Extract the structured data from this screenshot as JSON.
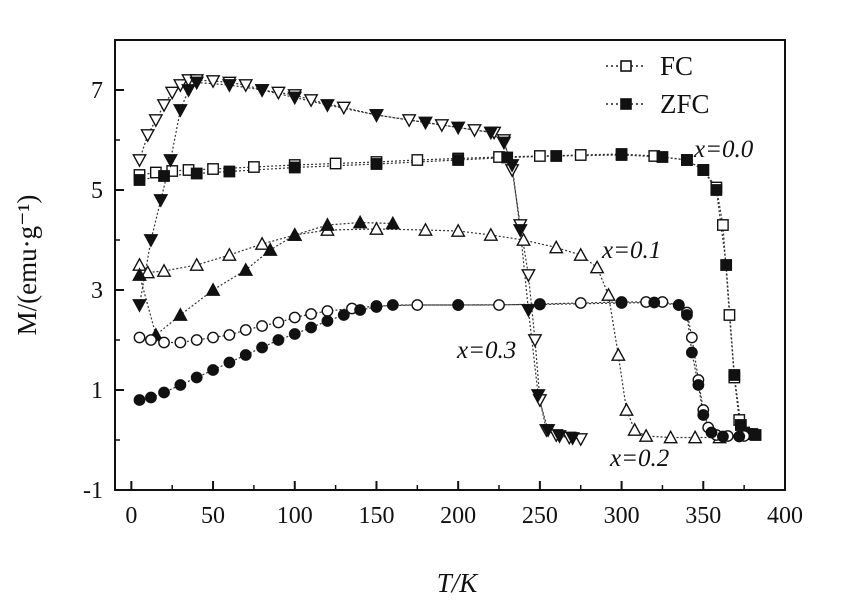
{
  "chart_data": {
    "type": "scatter",
    "title": "",
    "xlabel": "T/K",
    "ylabel": "M/(emu·g⁻¹)",
    "xlim": [
      -10,
      400
    ],
    "ylim": [
      -1,
      8
    ],
    "xticks": [
      0,
      50,
      100,
      150,
      200,
      250,
      300,
      350,
      400
    ],
    "yticks": [
      -1,
      1,
      3,
      5,
      7
    ],
    "legend": [
      {
        "label": "FC",
        "marker": "open-square",
        "line": "dotted"
      },
      {
        "label": "ZFC",
        "marker": "filled-square",
        "line": "dotted"
      }
    ],
    "annotations": [
      "x=0.0",
      "x=0.1",
      "x=0.3",
      "x=0.2"
    ],
    "series": [
      {
        "name": "x=0.0 FC",
        "marker": "open-square",
        "points": [
          [
            5,
            5.3
          ],
          [
            15,
            5.35
          ],
          [
            25,
            5.38
          ],
          [
            35,
            5.4
          ],
          [
            50,
            5.42
          ],
          [
            75,
            5.46
          ],
          [
            100,
            5.5
          ],
          [
            125,
            5.53
          ],
          [
            150,
            5.56
          ],
          [
            175,
            5.6
          ],
          [
            200,
            5.63
          ],
          [
            225,
            5.66
          ],
          [
            250,
            5.68
          ],
          [
            275,
            5.7
          ],
          [
            300,
            5.72
          ],
          [
            320,
            5.68
          ],
          [
            340,
            5.6
          ],
          [
            350,
            5.4
          ],
          [
            358,
            5.05
          ],
          [
            362,
            4.3
          ],
          [
            366,
            2.5
          ],
          [
            369,
            1.25
          ],
          [
            372,
            0.4
          ],
          [
            375,
            0.15
          ],
          [
            380,
            0.12
          ]
        ]
      },
      {
        "name": "x=0.0 ZFC",
        "marker": "filled-square",
        "points": [
          [
            5,
            5.2
          ],
          [
            20,
            5.28
          ],
          [
            40,
            5.33
          ],
          [
            60,
            5.37
          ],
          [
            100,
            5.45
          ],
          [
            150,
            5.52
          ],
          [
            200,
            5.6
          ],
          [
            230,
            5.65
          ],
          [
            260,
            5.68
          ],
          [
            300,
            5.7
          ],
          [
            325,
            5.66
          ],
          [
            340,
            5.6
          ],
          [
            350,
            5.4
          ],
          [
            358,
            5.0
          ],
          [
            364,
            3.5
          ],
          [
            369,
            1.3
          ],
          [
            373,
            0.3
          ],
          [
            377,
            0.12
          ],
          [
            382,
            0.1
          ]
        ]
      },
      {
        "name": "x=0.1 FC",
        "marker": "open-triangle-up",
        "points": [
          [
            5,
            3.5
          ],
          [
            10,
            3.35
          ],
          [
            20,
            3.38
          ],
          [
            40,
            3.5
          ],
          [
            60,
            3.7
          ],
          [
            80,
            3.92
          ],
          [
            100,
            4.1
          ],
          [
            120,
            4.2
          ],
          [
            150,
            4.22
          ],
          [
            180,
            4.2
          ],
          [
            200,
            4.18
          ],
          [
            220,
            4.1
          ],
          [
            240,
            4.0
          ],
          [
            260,
            3.85
          ],
          [
            275,
            3.7
          ],
          [
            285,
            3.45
          ],
          [
            292,
            2.9
          ],
          [
            298,
            1.7
          ],
          [
            303,
            0.6
          ],
          [
            308,
            0.2
          ],
          [
            315,
            0.08
          ],
          [
            330,
            0.05
          ],
          [
            345,
            0.05
          ],
          [
            360,
            0.05
          ]
        ]
      },
      {
        "name": "x=0.1 ZFC",
        "marker": "filled-triangle-up",
        "points": [
          [
            5,
            3.3
          ],
          [
            15,
            2.1
          ],
          [
            30,
            2.5
          ],
          [
            50,
            3.0
          ],
          [
            70,
            3.4
          ],
          [
            85,
            3.8
          ],
          [
            100,
            4.1
          ],
          [
            120,
            4.3
          ],
          [
            140,
            4.35
          ],
          [
            160,
            4.33
          ]
        ]
      },
      {
        "name": "x=0.3 FC",
        "marker": "open-triangle-down",
        "points": [
          [
            5,
            5.6
          ],
          [
            10,
            6.1
          ],
          [
            15,
            6.4
          ],
          [
            20,
            6.7
          ],
          [
            25,
            6.95
          ],
          [
            30,
            7.1
          ],
          [
            35,
            7.2
          ],
          [
            40,
            7.2
          ],
          [
            50,
            7.18
          ],
          [
            60,
            7.15
          ],
          [
            70,
            7.1
          ],
          [
            80,
            7.0
          ],
          [
            90,
            6.95
          ],
          [
            100,
            6.9
          ],
          [
            110,
            6.8
          ],
          [
            130,
            6.65
          ],
          [
            150,
            6.5
          ],
          [
            170,
            6.4
          ],
          [
            190,
            6.3
          ],
          [
            210,
            6.2
          ],
          [
            222,
            6.15
          ],
          [
            228,
            6.0
          ],
          [
            233,
            5.4
          ],
          [
            238,
            4.3
          ],
          [
            243,
            3.3
          ],
          [
            247,
            2.0
          ],
          [
            250,
            0.8
          ],
          [
            254,
            0.2
          ],
          [
            260,
            0.1
          ],
          [
            268,
            0.05
          ],
          [
            275,
            0.02
          ]
        ]
      },
      {
        "name": "x=0.3 ZFC",
        "marker": "filled-triangle-down",
        "points": [
          [
            5,
            2.7
          ],
          [
            12,
            4.0
          ],
          [
            18,
            4.8
          ],
          [
            24,
            5.6
          ],
          [
            30,
            6.6
          ],
          [
            35,
            7.0
          ],
          [
            40,
            7.15
          ],
          [
            60,
            7.1
          ],
          [
            80,
            7.0
          ],
          [
            100,
            6.85
          ],
          [
            120,
            6.7
          ],
          [
            150,
            6.5
          ],
          [
            180,
            6.35
          ],
          [
            200,
            6.25
          ],
          [
            220,
            6.15
          ],
          [
            228,
            5.95
          ],
          [
            233,
            5.5
          ],
          [
            238,
            4.2
          ],
          [
            243,
            2.6
          ],
          [
            249,
            0.9
          ],
          [
            255,
            0.2
          ],
          [
            262,
            0.08
          ],
          [
            270,
            0.04
          ]
        ]
      },
      {
        "name": "x=0.2 FC",
        "marker": "open-circle",
        "points": [
          [
            5,
            2.05
          ],
          [
            12,
            2.0
          ],
          [
            20,
            1.95
          ],
          [
            30,
            1.95
          ],
          [
            40,
            2.0
          ],
          [
            50,
            2.05
          ],
          [
            60,
            2.1
          ],
          [
            70,
            2.2
          ],
          [
            80,
            2.28
          ],
          [
            90,
            2.35
          ],
          [
            100,
            2.45
          ],
          [
            110,
            2.52
          ],
          [
            120,
            2.58
          ],
          [
            135,
            2.63
          ],
          [
            150,
            2.68
          ],
          [
            175,
            2.7
          ],
          [
            200,
            2.7
          ],
          [
            225,
            2.7
          ],
          [
            250,
            2.72
          ],
          [
            275,
            2.74
          ],
          [
            300,
            2.76
          ],
          [
            315,
            2.76
          ],
          [
            325,
            2.76
          ],
          [
            335,
            2.7
          ],
          [
            340,
            2.55
          ],
          [
            343,
            2.05
          ],
          [
            347,
            1.2
          ],
          [
            350,
            0.6
          ],
          [
            353,
            0.25
          ],
          [
            358,
            0.1
          ],
          [
            365,
            0.08
          ],
          [
            375,
            0.08
          ]
        ]
      },
      {
        "name": "x=0.2 ZFC",
        "marker": "filled-circle",
        "points": [
          [
            5,
            0.8
          ],
          [
            12,
            0.85
          ],
          [
            20,
            0.95
          ],
          [
            30,
            1.1
          ],
          [
            40,
            1.25
          ],
          [
            50,
            1.4
          ],
          [
            60,
            1.55
          ],
          [
            70,
            1.7
          ],
          [
            80,
            1.85
          ],
          [
            90,
            2.0
          ],
          [
            100,
            2.12
          ],
          [
            110,
            2.25
          ],
          [
            120,
            2.38
          ],
          [
            130,
            2.5
          ],
          [
            140,
            2.6
          ],
          [
            150,
            2.66
          ],
          [
            160,
            2.7
          ],
          [
            200,
            2.7
          ],
          [
            250,
            2.71
          ],
          [
            300,
            2.74
          ],
          [
            320,
            2.75
          ],
          [
            335,
            2.7
          ],
          [
            340,
            2.5
          ],
          [
            343,
            1.75
          ],
          [
            347,
            1.1
          ],
          [
            350,
            0.5
          ],
          [
            355,
            0.15
          ],
          [
            362,
            0.07
          ],
          [
            372,
            0.07
          ]
        ]
      }
    ]
  }
}
